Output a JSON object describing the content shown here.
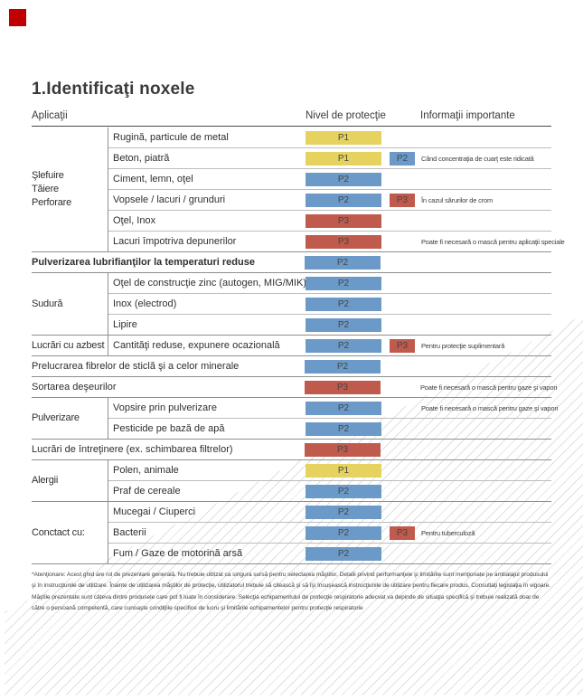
{
  "page": {
    "title": "1.Identificaţi noxele",
    "corner_mark_color": "#c00000"
  },
  "columns": {
    "applications": "Aplicaţii",
    "protection": "Nivel de protecţie",
    "info": "Informaţii importante"
  },
  "protection_colors": {
    "P1": "#e6d35f",
    "P2": "#6b9ac8",
    "P3": "#c05a4d"
  },
  "table": {
    "sections": [
      {
        "group": "Şlefuire\nTăiere\nPerforare",
        "rows": [
          {
            "label": "Rugină, particule de metal",
            "chips": [
              "P1"
            ],
            "info": ""
          },
          {
            "label": "Beton, piatră",
            "chips": [
              "P1",
              "P2"
            ],
            "info": "Când concentraţia de cuarţ este ridicată"
          },
          {
            "label": "Ciment, lemn, oţel",
            "chips": [
              "P2"
            ],
            "info": ""
          },
          {
            "label": "Vopsele / lacuri / grunduri",
            "chips": [
              "P2",
              "P3"
            ],
            "info": "În cazul sărurilor de crom"
          },
          {
            "label": "Oţel, Inox",
            "chips": [
              "P3"
            ],
            "info": ""
          },
          {
            "label": "Lacuri împotriva depunerilor",
            "chips": [
              "P3"
            ],
            "info": "Poate fi necesară o mască pentru aplicaţii speciale"
          }
        ]
      },
      {
        "group": null,
        "bold": true,
        "rows": [
          {
            "label": "Pulverizarea lubrifianţilor la temperaturi reduse",
            "chips": [
              "P2"
            ],
            "info": ""
          }
        ]
      },
      {
        "group": "Sudură",
        "rows": [
          {
            "label": "Oţel de construcţie zinc (autogen, MIG/MIK)",
            "chips": [
              "P2"
            ],
            "info": ""
          },
          {
            "label": "Inox (electrod)",
            "chips": [
              "P2"
            ],
            "info": ""
          },
          {
            "label": "Lipire",
            "chips": [
              "P2"
            ],
            "info": ""
          }
        ]
      },
      {
        "group": "Lucrări cu azbest",
        "rows": [
          {
            "label": "Cantităţi reduse, expunere ocazională",
            "chips": [
              "P2",
              "P3"
            ],
            "info": "Pentru protecţie suplimentară"
          }
        ]
      },
      {
        "group": null,
        "rows": [
          {
            "label": "Prelucrarea fibrelor de sticlă şi a celor minerale",
            "chips": [
              "P2"
            ],
            "info": ""
          }
        ]
      },
      {
        "group": null,
        "rows": [
          {
            "label": "Sortarea deşeurilor",
            "chips": [
              "P3"
            ],
            "info": "Poate fi necesară o mască pentru gaze şi vapori"
          }
        ]
      },
      {
        "group": "Pulverizare",
        "rows": [
          {
            "label": "Vopsire prin pulverizare",
            "chips": [
              "P2"
            ],
            "info": "Poate fi necesară o mască pentru gaze şi vapori"
          },
          {
            "label": "Pesticide pe bază de apă",
            "chips": [
              "P2"
            ],
            "info": ""
          }
        ]
      },
      {
        "group": null,
        "rows": [
          {
            "label": "Lucrări de întreţinere (ex. schimbarea filtrelor)",
            "chips": [
              "P3"
            ],
            "info": ""
          }
        ]
      },
      {
        "group": "Alergii",
        "rows": [
          {
            "label": "Polen, animale",
            "chips": [
              "P1"
            ],
            "info": ""
          },
          {
            "label": "Praf de cereale",
            "chips": [
              "P2"
            ],
            "info": ""
          }
        ]
      },
      {
        "group": "Conctact cu:",
        "rows": [
          {
            "label": "Mucegai / Ciuperci",
            "chips": [
              "P2"
            ],
            "info": ""
          },
          {
            "label": "Bacterii",
            "chips": [
              "P2",
              "P3"
            ],
            "info": "Pentru tuberculoză"
          },
          {
            "label": "Fum / Gaze de motorină arsă",
            "chips": [
              "P2"
            ],
            "info": ""
          }
        ]
      }
    ]
  },
  "footnote": "*Atenţionare: Acest ghid are rol de prezentare generală. Nu trebuie utilizat ca singura sursă pentru selectarea măştilor. Detalii privind performanţele şi limitările sunt menţionate pe ambalajul produsului şi în instrucţiunile de utilizare. Înainte de utilizarea măştilor de protecţie, utilizatorul trebuie să citească şi să îşi însuşească instrucţiunile de utilizare pentru fiecare produs. Consultaţi legislaţia în vigoare. Măştile prezentate sunt câteva dintre produsele care pot fi luate în considerare. Selecţia echipamentului de protecţie respiratorie adecvat va depinde de situaţia specifică şi trebuie realizată doar de către o persoană competentă, care cunoaşte condiţiile specifice de lucru şi limitările echipamentelor pentru protecţie respiratorie"
}
